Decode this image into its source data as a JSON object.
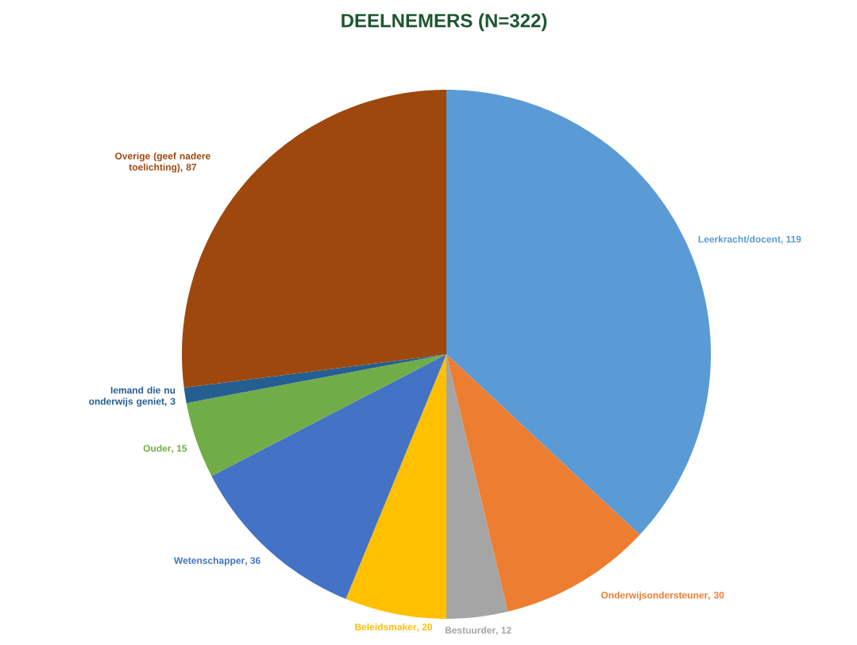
{
  "chart_data": {
    "type": "pie",
    "title": "DEELNEMERS (N=322)",
    "categories": [
      "Leerkracht/docent",
      "Onderwijsondersteuner",
      "Bestuurder",
      "Beleidsmaker",
      "Wetenschapper",
      "Ouder",
      "Iemand die nu onderwijs geniet",
      "Overige (geef nadere toelichting)"
    ],
    "values": [
      119,
      30,
      12,
      20,
      36,
      15,
      3,
      87
    ],
    "data_labels": true,
    "value_labels": [
      ", 119",
      ", 30",
      ", 12",
      ", 20",
      ", 36",
      ", 15",
      ", 3",
      ", 87"
    ],
    "colors": [
      "#5b9bd5",
      "#ed7d31",
      "#a5a5a5",
      "#ffc000",
      "#4472c4",
      "#70ad47",
      "#255e91",
      "#9e480e"
    ]
  }
}
